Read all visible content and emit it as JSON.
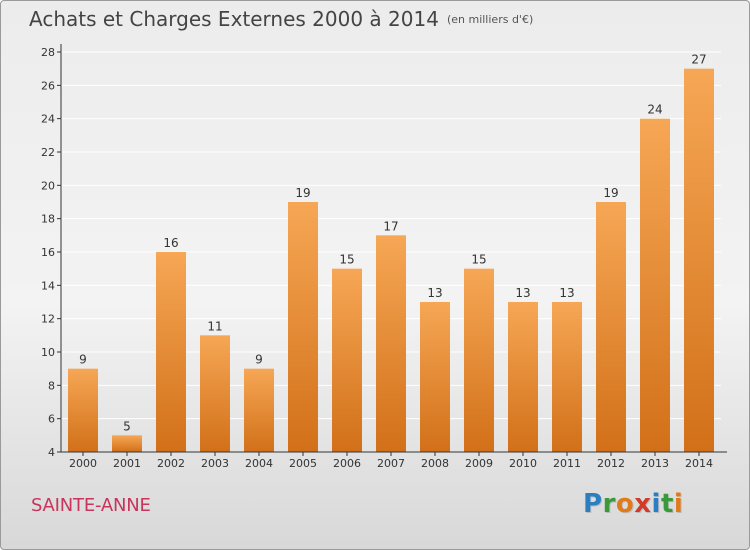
{
  "title": "Achats et Charges Externes 2000 à 2014",
  "unit": "(en milliers d'€)",
  "city": "SAINTE-ANNE",
  "brand": {
    "text": "Proxiti",
    "letters": [
      {
        "ch": "P",
        "color": "#2a7ec2"
      },
      {
        "ch": "r",
        "color": "#3a9a3a"
      },
      {
        "ch": "o",
        "color": "#e07a1a"
      },
      {
        "ch": "x",
        "color": "#d23a2a"
      },
      {
        "ch": "i",
        "color": "#2a7ec2"
      },
      {
        "ch": "t",
        "color": "#3a9a3a"
      },
      {
        "ch": "i",
        "color": "#e07a1a"
      }
    ]
  },
  "colors": {
    "bar_light": "#f6a755",
    "bar_dark": "#d27019",
    "axis": "#333333",
    "grid": "#ffffff"
  },
  "chart_data": {
    "type": "bar",
    "categories": [
      "2000",
      "2001",
      "2002",
      "2003",
      "2004",
      "2005",
      "2006",
      "2007",
      "2008",
      "2009",
      "2010",
      "2011",
      "2012",
      "2013",
      "2014"
    ],
    "values": [
      9,
      5,
      16,
      11,
      9,
      19,
      15,
      17,
      13,
      15,
      13,
      13,
      19,
      24,
      27
    ],
    "ylim": [
      4,
      28
    ],
    "yticks": [
      4,
      6,
      8,
      10,
      12,
      14,
      16,
      18,
      20,
      22,
      24,
      26,
      28
    ],
    "grid": true,
    "title": "Achats et Charges Externes 2000 à 2014",
    "xlabel": "",
    "ylabel": ""
  }
}
